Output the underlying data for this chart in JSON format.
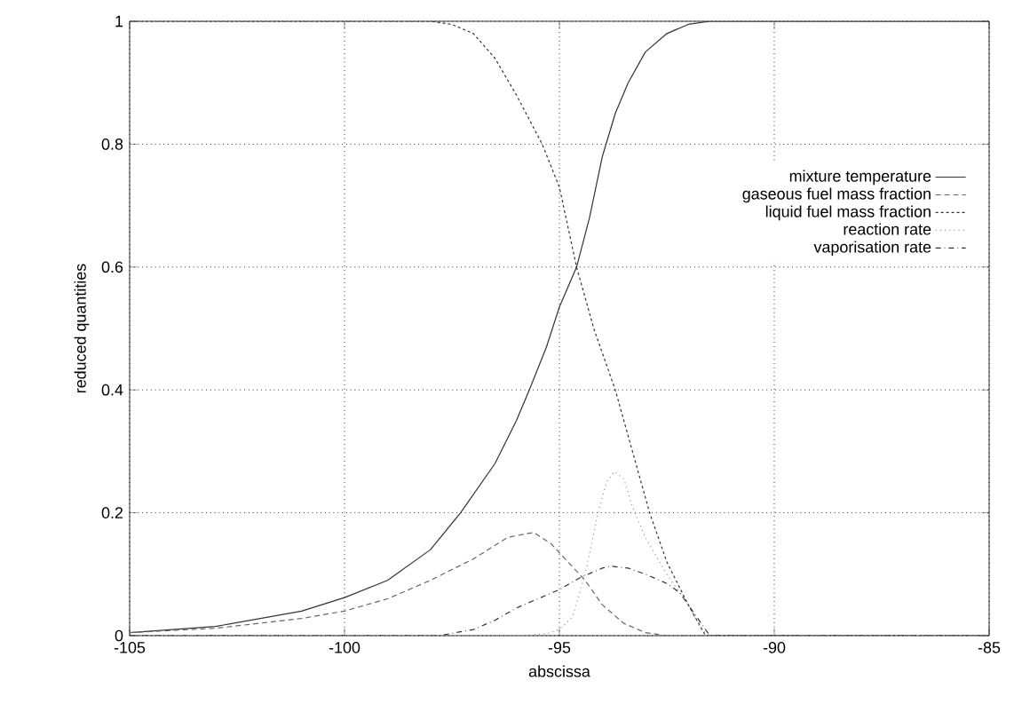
{
  "chart_data": {
    "type": "line",
    "xlabel": "abscissa",
    "ylabel": "reduced quantities",
    "xlim": [
      -105,
      -85
    ],
    "ylim": [
      0,
      1
    ],
    "xticks": [
      -105,
      -100,
      -95,
      -90,
      -85
    ],
    "yticks": [
      0,
      0.2,
      0.4,
      0.6,
      0.8,
      1
    ],
    "grid": true,
    "legend": "top right",
    "series": [
      {
        "name": "mixture temperature",
        "color": "#333333",
        "line_style": "solid",
        "x": [
          -105,
          -103,
          -101,
          -100,
          -99,
          -98,
          -97.3,
          -96.5,
          -96,
          -95.7,
          -95.3,
          -95,
          -94.6,
          -94.3,
          -94,
          -93.7,
          -93.4,
          -93,
          -92.5,
          -92,
          -91.5,
          -85
        ],
        "values": [
          0.005,
          0.015,
          0.04,
          0.062,
          0.09,
          0.14,
          0.2,
          0.28,
          0.35,
          0.4,
          0.47,
          0.535,
          0.6,
          0.68,
          0.78,
          0.85,
          0.9,
          0.95,
          0.98,
          0.995,
          1,
          1
        ]
      },
      {
        "name": "gaseous fuel mass fraction",
        "color": "#666666",
        "line_style": "dashed",
        "x": [
          -105,
          -103,
          -101,
          -100,
          -99,
          -98,
          -97,
          -96.2,
          -95.6,
          -95.2,
          -94.8,
          -94.4,
          -94,
          -93.5,
          -93,
          -92.5,
          -85
        ],
        "values": [
          0.005,
          0.012,
          0.028,
          0.04,
          0.06,
          0.09,
          0.125,
          0.16,
          0.168,
          0.15,
          0.12,
          0.09,
          0.05,
          0.02,
          0.005,
          0,
          0
        ]
      },
      {
        "name": "liquid fuel mass fraction",
        "color": "#333333",
        "line_style": "densely dashed",
        "x": [
          -105,
          -98,
          -97.5,
          -97,
          -96.5,
          -96,
          -95.4,
          -95,
          -94.6,
          -94.2,
          -93.7,
          -93.3,
          -92.9,
          -92.5,
          -92,
          -91.6,
          -85
        ],
        "values": [
          1,
          1,
          0.995,
          0.98,
          0.94,
          0.88,
          0.8,
          0.73,
          0.6,
          0.5,
          0.4,
          0.3,
          0.2,
          0.12,
          0.05,
          0,
          0
        ]
      },
      {
        "name": "reaction rate",
        "color": "#999999",
        "line_style": "dotted",
        "x": [
          -105,
          -96,
          -95.3,
          -95,
          -94.7,
          -94.4,
          -94.1,
          -93.9,
          -93.72,
          -93.5,
          -93.3,
          -93,
          -92.5,
          -92,
          -91.7,
          -91.5,
          -85
        ],
        "values": [
          0,
          0,
          0.003,
          0.01,
          0.03,
          0.1,
          0.2,
          0.25,
          0.267,
          0.255,
          0.21,
          0.16,
          0.1,
          0.05,
          0.01,
          0,
          0
        ]
      },
      {
        "name": "vaporisation rate",
        "color": "#333333",
        "line_style": "dashdot",
        "x": [
          -105,
          -97.8,
          -97,
          -96.5,
          -96,
          -95.5,
          -95,
          -94.5,
          -94,
          -93.8,
          -93.4,
          -93,
          -92.5,
          -92.2,
          -92,
          -91.7,
          -91.5,
          -85
        ],
        "values": [
          0,
          0,
          0.01,
          0.025,
          0.045,
          0.06,
          0.075,
          0.095,
          0.11,
          0.113,
          0.11,
          0.1,
          0.085,
          0.07,
          0.05,
          0.02,
          0,
          0
        ]
      }
    ]
  }
}
